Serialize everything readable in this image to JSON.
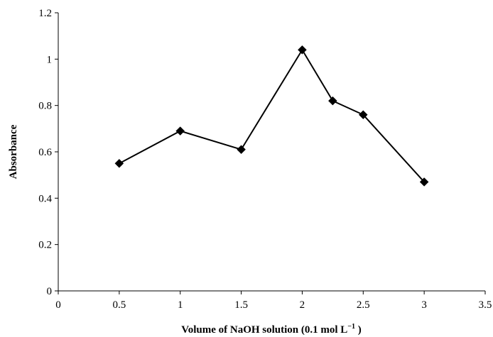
{
  "chart_data": {
    "type": "line",
    "title": "",
    "xlabel": "Volume of NaOH solution (0.1 mol L",
    "xlabel_superscript": "−1",
    "xlabel_suffix": " )",
    "ylabel": "Absorbance",
    "xlim": [
      0,
      3.5
    ],
    "ylim": [
      0,
      1.2
    ],
    "xticks": [
      "0",
      "0.5",
      "1",
      "1.5",
      "2",
      "2.5",
      "3",
      "3.5"
    ],
    "yticks": [
      "0",
      "0.2",
      "0.4",
      "0.6",
      "0.8",
      "1",
      "1.2"
    ],
    "grid": false,
    "legend": "none",
    "marker": "diamond",
    "line_color": "#000000",
    "x": [
      0.5,
      1.0,
      1.5,
      2.0,
      2.25,
      2.5,
      3.0
    ],
    "y": [
      0.55,
      0.69,
      0.61,
      1.04,
      0.82,
      0.76,
      0.47
    ]
  }
}
